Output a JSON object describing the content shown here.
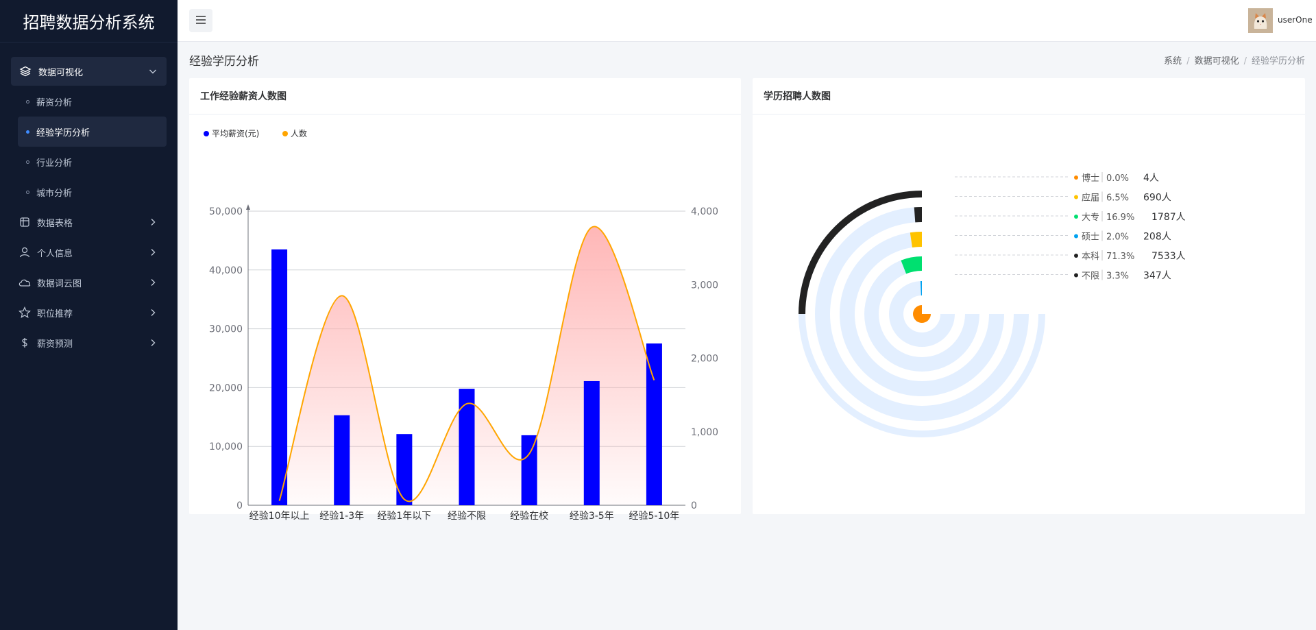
{
  "app": {
    "title": "招聘数据分析系统"
  },
  "sidebar": {
    "groups": [
      {
        "label": "数据可视化",
        "icon": "layers-icon",
        "open": true,
        "children": [
          {
            "label": "薪资分析",
            "active": false
          },
          {
            "label": "经验学历分析",
            "active": true
          },
          {
            "label": "行业分析",
            "active": false
          },
          {
            "label": "城市分析",
            "active": false
          }
        ]
      }
    ],
    "items": [
      {
        "label": "数据表格",
        "icon": "table-icon"
      },
      {
        "label": "个人信息",
        "icon": "user-icon"
      },
      {
        "label": "数据词云图",
        "icon": "cloud-icon"
      },
      {
        "label": "职位推荐",
        "icon": "star-icon"
      },
      {
        "label": "薪资预测",
        "icon": "dollar-icon"
      }
    ]
  },
  "header": {
    "username": "userOne"
  },
  "page": {
    "title": "经验学历分析",
    "breadcrumb": [
      "系统",
      "数据可视化",
      "经验学历分析"
    ]
  },
  "cards": {
    "left_title": "工作经验薪资人数图",
    "right_title": "学历招聘人数图"
  },
  "colors": {
    "sidebar_bg": "#111a2e",
    "bar": "#0000ff",
    "line": "#ffa500",
    "area_top": "#ffb3b3",
    "ring_track": "#e3efff"
  },
  "chart_data": [
    {
      "type": "bar+line",
      "title": "工作经验薪资人数图",
      "legend": [
        "平均薪资(元)",
        "人数"
      ],
      "legend_position": "top-left",
      "categories": [
        "经验10年以上",
        "经验1-3年",
        "经验1年以下",
        "经验不限",
        "经验在校",
        "经验3-5年",
        "经验5-10年"
      ],
      "series": [
        {
          "name": "平均薪资(元)",
          "type": "bar",
          "axis": "left",
          "values": [
            43500,
            15300,
            12100,
            19800,
            11900,
            21100,
            27500
          ]
        },
        {
          "name": "人数",
          "type": "line",
          "axis": "right",
          "smooth": true,
          "area": true,
          "values": [
            60,
            2850,
            80,
            1380,
            700,
            3780,
            1700
          ]
        }
      ],
      "y_left": {
        "min": 0,
        "max": 50000,
        "ticks": [
          "0",
          "10,000",
          "20,000",
          "30,000",
          "40,000",
          "50,000"
        ]
      },
      "y_right": {
        "min": 0,
        "max": 4000,
        "ticks": [
          "0",
          "1,000",
          "2,000",
          "3,000",
          "4,000"
        ]
      },
      "grid": true
    },
    {
      "type": "polar-bar",
      "title": "学历招聘人数图",
      "legend_position": "right",
      "items": [
        {
          "name": "博士",
          "percent": "0.0%",
          "count": "4人",
          "value": 4,
          "color": "#ff8c00"
        },
        {
          "name": "应届",
          "percent": "6.5%",
          "count": "690人",
          "value": 690,
          "color": "#ffc300"
        },
        {
          "name": "大专",
          "percent": "16.9%",
          "count": "1787人",
          "value": 1787,
          "color": "#00e070"
        },
        {
          "name": "硕士",
          "percent": "2.0%",
          "count": "208人",
          "value": 208,
          "color": "#00a2f0"
        },
        {
          "name": "本科",
          "percent": "71.3%",
          "count": "7533人",
          "value": 7533,
          "color": "#222222"
        },
        {
          "name": "不限",
          "percent": "3.3%",
          "count": "347人",
          "value": 347,
          "color": "#222222"
        }
      ]
    }
  ]
}
